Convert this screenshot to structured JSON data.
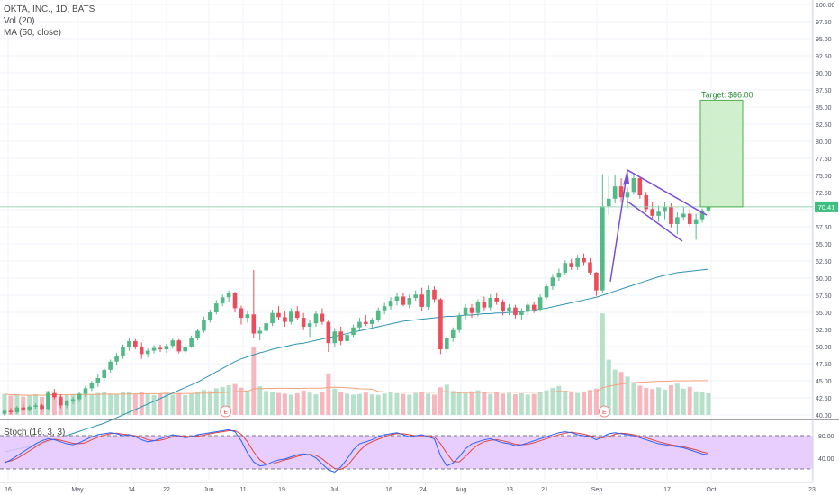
{
  "legend": {
    "symbol": "OKTA, INC., 1D, BATS",
    "vol": "Vol (20)",
    "ma": "MA (50, close)",
    "stoch": "Stoch (16, 3, 3)"
  },
  "price_axis": {
    "ticks": [
      "100.00",
      "97.50",
      "95.00",
      "92.50",
      "90.00",
      "87.50",
      "85.00",
      "82.50",
      "80.00",
      "77.50",
      "75.00",
      "72.50",
      "70.00",
      "67.50",
      "65.00",
      "62.50",
      "60.00",
      "57.50",
      "55.00",
      "52.50",
      "50.00",
      "47.50",
      "45.00",
      "42.50",
      "40.00"
    ],
    "last_price": "70.41"
  },
  "stoch_axis": {
    "ticks": [
      "80.00",
      "40.00"
    ]
  },
  "date_axis": {
    "labels": [
      "16",
      "May",
      "14",
      "22",
      "Jun",
      "11",
      "19",
      "Jul",
      "16",
      "24",
      "Aug",
      "13",
      "21",
      "Sep",
      "17",
      "Oct",
      "23"
    ]
  },
  "annotations": {
    "target_label": "Target: $86.00",
    "earnings_marker": "E"
  },
  "colors": {
    "up": "#53b987",
    "down": "#eb4d5c",
    "up_vol": "#b7e0cb",
    "down_vol": "#f6b8be",
    "ma": "#2e93b5",
    "vol_ma": "#f4a37a",
    "stoch_k": "#2962ff",
    "stoch_d": "#e2443a",
    "stoch_band": "#e3c6ff",
    "target_box": "#c8ecc4",
    "target_border": "#4caf50",
    "pattern_line": "#7b4fd6"
  },
  "chart_data": {
    "type": "candlestick",
    "title": "OKTA, INC., 1D, BATS",
    "ylim": [
      40,
      100
    ],
    "candles": [
      [
        40.2,
        40.9,
        39.9,
        40.6
      ],
      [
        40.6,
        41.0,
        40.1,
        40.4
      ],
      [
        40.4,
        41.3,
        40.2,
        41.1
      ],
      [
        41.1,
        41.6,
        40.6,
        40.8
      ],
      [
        40.8,
        41.4,
        40.5,
        41.2
      ],
      [
        41.2,
        41.7,
        40.9,
        41.4
      ],
      [
        41.4,
        41.6,
        40.8,
        40.9
      ],
      [
        40.9,
        43.5,
        40.7,
        43.2
      ],
      [
        43.2,
        43.8,
        42.3,
        42.6
      ],
      [
        42.6,
        43.0,
        41.0,
        41.4
      ],
      [
        41.4,
        42.2,
        41.0,
        42.0
      ],
      [
        42.0,
        42.6,
        41.6,
        42.3
      ],
      [
        42.3,
        43.4,
        41.9,
        43.1
      ],
      [
        43.1,
        44.3,
        42.6,
        43.9
      ],
      [
        43.9,
        45.0,
        43.5,
        44.7
      ],
      [
        44.7,
        46.0,
        44.1,
        45.4
      ],
      [
        45.4,
        46.9,
        45.0,
        46.6
      ],
      [
        46.6,
        48.1,
        46.2,
        47.8
      ],
      [
        47.8,
        49.1,
        47.2,
        48.6
      ],
      [
        48.6,
        50.3,
        48.2,
        49.9
      ],
      [
        49.9,
        51.3,
        49.4,
        50.8
      ],
      [
        50.8,
        51.1,
        49.6,
        50.0
      ],
      [
        50.0,
        50.6,
        48.2,
        48.9
      ],
      [
        48.9,
        49.7,
        48.4,
        49.4
      ],
      [
        49.4,
        50.2,
        49.0,
        49.8
      ],
      [
        49.8,
        50.3,
        49.2,
        49.6
      ],
      [
        49.6,
        50.4,
        49.1,
        50.1
      ],
      [
        50.1,
        51.2,
        49.7,
        50.9
      ],
      [
        50.9,
        51.1,
        49.0,
        49.3
      ],
      [
        49.3,
        50.3,
        48.9,
        50.0
      ],
      [
        50.0,
        51.6,
        49.8,
        51.2
      ],
      [
        51.2,
        52.6,
        50.9,
        52.3
      ],
      [
        52.3,
        54.4,
        52.0,
        53.9
      ],
      [
        53.9,
        55.4,
        53.5,
        55.0
      ],
      [
        55.0,
        56.8,
        54.7,
        56.3
      ],
      [
        56.3,
        57.6,
        55.9,
        57.2
      ],
      [
        57.2,
        58.2,
        56.5,
        57.8
      ],
      [
        57.8,
        58.0,
        55.0,
        55.6
      ],
      [
        55.6,
        56.0,
        53.2,
        54.2
      ],
      [
        54.2,
        55.2,
        53.5,
        54.7
      ],
      [
        54.7,
        61.2,
        51.2,
        51.9
      ],
      [
        51.9,
        52.9,
        50.9,
        52.3
      ],
      [
        52.3,
        53.9,
        51.9,
        53.4
      ],
      [
        53.4,
        55.4,
        53.0,
        54.9
      ],
      [
        54.9,
        55.9,
        53.9,
        54.3
      ],
      [
        54.3,
        55.2,
        52.9,
        53.6
      ],
      [
        53.6,
        55.6,
        53.2,
        55.1
      ],
      [
        55.1,
        55.9,
        53.9,
        54.2
      ],
      [
        54.2,
        54.9,
        52.4,
        52.9
      ],
      [
        52.9,
        53.9,
        51.4,
        53.4
      ],
      [
        53.4,
        55.2,
        52.9,
        54.8
      ],
      [
        54.8,
        55.6,
        53.2,
        53.6
      ],
      [
        53.6,
        53.9,
        49.2,
        50.5
      ],
      [
        50.5,
        52.7,
        49.9,
        52.2
      ],
      [
        52.2,
        52.9,
        50.2,
        50.8
      ],
      [
        50.8,
        52.2,
        50.4,
        51.7
      ],
      [
        51.7,
        53.2,
        51.4,
        52.8
      ],
      [
        52.8,
        54.2,
        52.4,
        53.6
      ],
      [
        53.6,
        54.6,
        53.0,
        53.3
      ],
      [
        53.3,
        54.2,
        52.5,
        53.9
      ],
      [
        53.9,
        55.7,
        53.6,
        55.3
      ],
      [
        55.3,
        56.4,
        54.7,
        55.9
      ],
      [
        55.9,
        57.2,
        55.4,
        56.7
      ],
      [
        56.7,
        57.9,
        56.0,
        57.3
      ],
      [
        57.3,
        57.8,
        55.9,
        56.1
      ],
      [
        56.1,
        57.6,
        55.6,
        57.1
      ],
      [
        57.1,
        58.2,
        56.7,
        57.6
      ],
      [
        57.6,
        58.6,
        55.2,
        55.8
      ],
      [
        55.8,
        58.9,
        55.4,
        58.3
      ],
      [
        58.3,
        58.8,
        56.4,
        56.9
      ],
      [
        56.9,
        57.1,
        48.9,
        49.6
      ],
      [
        49.6,
        51.6,
        49.1,
        51.2
      ],
      [
        51.2,
        52.8,
        50.7,
        52.4
      ],
      [
        52.4,
        54.9,
        52.0,
        54.5
      ],
      [
        54.5,
        56.2,
        54.0,
        55.7
      ],
      [
        55.7,
        56.2,
        54.2,
        54.9
      ],
      [
        54.9,
        56.9,
        54.4,
        56.5
      ],
      [
        56.5,
        57.3,
        55.3,
        55.7
      ],
      [
        55.7,
        57.6,
        55.3,
        57.1
      ],
      [
        57.1,
        57.8,
        56.1,
        56.6
      ],
      [
        56.6,
        56.9,
        54.6,
        55.2
      ],
      [
        55.2,
        56.2,
        54.6,
        55.7
      ],
      [
        55.7,
        56.1,
        54.1,
        54.6
      ],
      [
        54.6,
        55.6,
        53.9,
        55.1
      ],
      [
        55.1,
        56.6,
        54.6,
        56.1
      ],
      [
        56.1,
        56.6,
        54.9,
        55.4
      ],
      [
        55.4,
        57.6,
        55.1,
        57.2
      ],
      [
        57.2,
        59.2,
        56.9,
        58.8
      ],
      [
        58.8,
        60.6,
        58.3,
        60.1
      ],
      [
        60.1,
        61.4,
        59.6,
        60.8
      ],
      [
        60.8,
        62.6,
        60.4,
        62.2
      ],
      [
        62.2,
        62.8,
        61.2,
        61.6
      ],
      [
        61.6,
        63.4,
        61.2,
        62.9
      ],
      [
        62.9,
        63.6,
        61.9,
        62.3
      ],
      [
        62.3,
        62.9,
        60.4,
        60.8
      ],
      [
        60.8,
        60.9,
        57.4,
        58.2
      ],
      [
        58.2,
        75.2,
        57.9,
        70.5
      ],
      [
        70.5,
        74.9,
        69.2,
        71.6
      ],
      [
        71.6,
        75.1,
        70.9,
        73.4
      ],
      [
        73.4,
        74.6,
        71.2,
        71.8
      ],
      [
        71.8,
        73.2,
        70.2,
        72.6
      ],
      [
        72.6,
        75.2,
        72.2,
        74.6
      ],
      [
        74.6,
        74.8,
        71.6,
        72.1
      ],
      [
        72.1,
        72.6,
        69.6,
        70.1
      ],
      [
        70.1,
        71.1,
        68.6,
        69.1
      ],
      [
        69.1,
        70.6,
        68.2,
        69.7
      ],
      [
        69.7,
        71.1,
        68.6,
        70.4
      ],
      [
        70.4,
        70.9,
        67.4,
        67.9
      ],
      [
        67.9,
        69.6,
        66.4,
        68.9
      ],
      [
        68.9,
        70.4,
        68.4,
        69.4
      ],
      [
        69.4,
        70.1,
        67.6,
        67.9
      ],
      [
        67.9,
        69.4,
        65.6,
        68.6
      ],
      [
        68.6,
        70.2,
        68.1,
        69.9
      ],
      [
        69.9,
        70.9,
        69.6,
        70.41
      ]
    ],
    "volume": [
      6.3,
      5.8,
      6.1,
      5.5,
      5.9,
      6.2,
      5.4,
      7.2,
      6.5,
      5.8,
      6.0,
      6.3,
      6.4,
      6.7,
      6.2,
      6.6,
      6.9,
      6.4,
      6.1,
      6.8,
      7.0,
      6.2,
      6.9,
      6.3,
      6.0,
      6.4,
      6.7,
      6.1,
      6.6,
      6.0,
      6.3,
      6.9,
      7.5,
      7.2,
      8.0,
      8.4,
      8.9,
      9.3,
      8.2,
      7.4,
      20.5,
      8.6,
      7.2,
      7.0,
      6.6,
      6.4,
      6.1,
      6.5,
      7.3,
      6.7,
      6.2,
      6.8,
      12.5,
      7.9,
      6.9,
      6.4,
      6.1,
      6.3,
      6.7,
      6.2,
      6.0,
      6.4,
      6.8,
      6.5,
      6.3,
      6.1,
      6.6,
      7.0,
      6.4,
      6.1,
      8.3,
      9.1,
      7.2,
      6.8,
      6.5,
      7.1,
      7.4,
      7.0,
      6.3,
      6.9,
      6.4,
      6.6,
      6.2,
      6.5,
      6.1,
      6.3,
      6.8,
      7.4,
      8.1,
      8.7,
      7.3,
      6.9,
      6.6,
      6.8,
      7.5,
      7.9,
      30.5,
      16.6,
      13.6,
      12.9,
      11.5,
      9.7,
      8.8,
      8.1,
      7.8,
      8.3,
      7.6,
      8.9,
      9.4,
      7.9,
      8.4,
      7.1,
      6.8,
      6.5
    ],
    "ma50": [
      34.6,
      34.8,
      35.0,
      35.2,
      35.4,
      35.6,
      35.8,
      36.1,
      36.4,
      36.7,
      37.0,
      37.3,
      37.6,
      37.9,
      38.2,
      38.5,
      38.8,
      39.2,
      39.6,
      40.0,
      40.4,
      40.8,
      41.2,
      41.6,
      42.0,
      42.4,
      42.8,
      43.2,
      43.6,
      44.0,
      44.4,
      44.8,
      45.3,
      45.8,
      46.3,
      46.8,
      47.3,
      47.8,
      48.2,
      48.5,
      48.8,
      49.1,
      49.3,
      49.6,
      49.8,
      50.0,
      50.2,
      50.4,
      50.5,
      50.7,
      50.9,
      51.1,
      51.3,
      51.5,
      51.7,
      51.9,
      52.1,
      52.3,
      52.5,
      52.7,
      52.9,
      53.1,
      53.3,
      53.5,
      53.7,
      53.8,
      53.9,
      54.0,
      54.1,
      54.2,
      54.3,
      54.4,
      54.4,
      54.5,
      54.6,
      54.6,
      54.7,
      54.8,
      54.8,
      54.9,
      54.9,
      55.0,
      55.0,
      55.1,
      55.2,
      55.3,
      55.5,
      55.6,
      55.8,
      56.0,
      56.2,
      56.4,
      56.6,
      56.8,
      57.0,
      57.2,
      57.5,
      57.8,
      58.1,
      58.4,
      58.7,
      59.0,
      59.3,
      59.6,
      59.9,
      60.2,
      60.4,
      60.6,
      60.8,
      60.9,
      61.0,
      61.1,
      61.2,
      61.3
    ],
    "stoch_k": [
      28,
      34,
      42,
      50,
      58,
      66,
      72,
      76,
      74,
      70,
      66,
      64,
      68,
      74,
      80,
      84,
      86,
      88,
      86,
      82,
      84,
      80,
      74,
      70,
      72,
      76,
      80,
      84,
      82,
      78,
      80,
      84,
      86,
      88,
      90,
      92,
      94,
      90,
      72,
      48,
      30,
      22,
      24,
      30,
      34,
      36,
      40,
      44,
      46,
      44,
      38,
      26,
      14,
      10,
      20,
      36,
      54,
      66,
      70,
      74,
      80,
      84,
      86,
      88,
      84,
      80,
      82,
      84,
      80,
      76,
      42,
      22,
      28,
      40,
      56,
      66,
      70,
      74,
      76,
      72,
      68,
      66,
      62,
      64,
      68,
      72,
      76,
      80,
      84,
      88,
      90,
      88,
      84,
      82,
      80,
      74,
      80,
      86,
      88,
      86,
      84,
      82,
      78,
      74,
      70,
      66,
      64,
      62,
      60,
      58,
      54,
      50,
      46,
      44
    ],
    "stoch_d": [
      30,
      32,
      37,
      44,
      52,
      60,
      68,
      73,
      75,
      73,
      70,
      67,
      66,
      68,
      74,
      79,
      83,
      86,
      87,
      85,
      84,
      82,
      79,
      74,
      72,
      73,
      76,
      80,
      82,
      81,
      80,
      81,
      83,
      86,
      88,
      90,
      92,
      92,
      85,
      70,
      50,
      34,
      26,
      26,
      30,
      34,
      37,
      41,
      44,
      45,
      43,
      36,
      26,
      17,
      15,
      22,
      37,
      52,
      64,
      70,
      75,
      80,
      84,
      86,
      86,
      84,
      82,
      82,
      82,
      80,
      66,
      47,
      31,
      30,
      41,
      54,
      64,
      70,
      73,
      74,
      72,
      69,
      65,
      64,
      65,
      68,
      72,
      76,
      80,
      84,
      87,
      89,
      87,
      85,
      82,
      79,
      78,
      80,
      85,
      87,
      86,
      84,
      81,
      78,
      74,
      70,
      67,
      64,
      62,
      60,
      57,
      54,
      50,
      47
    ],
    "target": 86.0,
    "current": 70.41
  }
}
